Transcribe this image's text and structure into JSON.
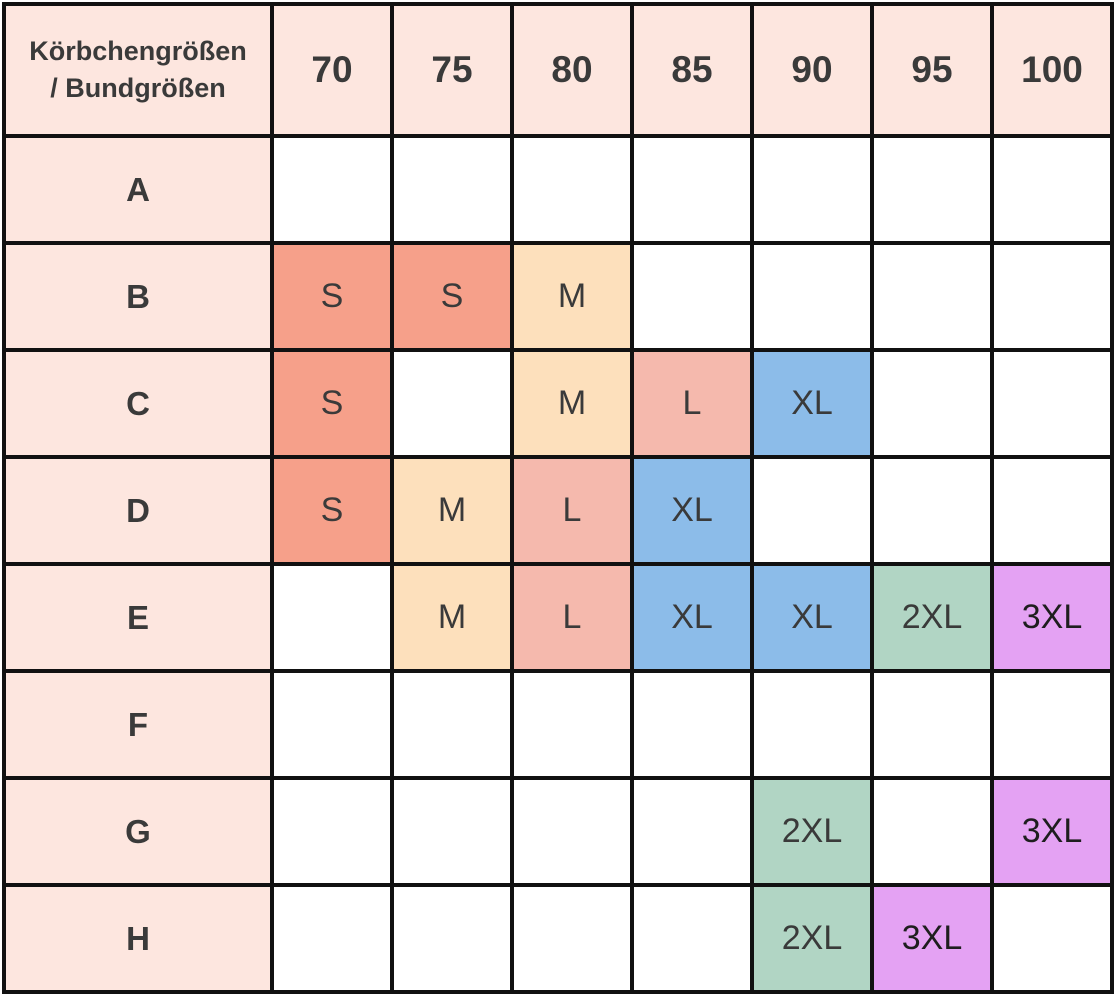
{
  "table": {
    "corner_label_line1": "Körbchengrößen",
    "corner_label_line2": "/ Bundgrößen",
    "band_sizes": [
      "70",
      "75",
      "80",
      "85",
      "90",
      "95",
      "100"
    ],
    "rows": [
      {
        "cup": "A",
        "cells": [
          "",
          "",
          "",
          "",
          "",
          "",
          ""
        ]
      },
      {
        "cup": "B",
        "cells": [
          "S",
          "S",
          "M",
          "",
          "",
          "",
          ""
        ]
      },
      {
        "cup": "C",
        "cells": [
          "S",
          "",
          "M",
          "L",
          "XL",
          "",
          ""
        ]
      },
      {
        "cup": "D",
        "cells": [
          "S",
          "M",
          "L",
          "XL",
          "",
          "",
          ""
        ]
      },
      {
        "cup": "E",
        "cells": [
          "",
          "M",
          "L",
          "XL",
          "XL",
          "2XL",
          "3XL"
        ]
      },
      {
        "cup": "F",
        "cells": [
          "",
          "",
          "",
          "",
          "",
          "",
          ""
        ]
      },
      {
        "cup": "G",
        "cells": [
          "",
          "",
          "",
          "",
          "2XL",
          "",
          "3XL"
        ]
      },
      {
        "cup": "H",
        "cells": [
          "",
          "",
          "",
          "",
          "2XL",
          "3XL",
          ""
        ]
      }
    ]
  },
  "colors": {
    "header_bg": "#fde6df",
    "S": "#f6a08a",
    "M": "#fde0bc",
    "L": "#f5b9ad",
    "XL": "#8cbce9",
    "2XL": "#b1d5c4",
    "3XL": "#e4a2f3",
    "border": "#111111"
  }
}
